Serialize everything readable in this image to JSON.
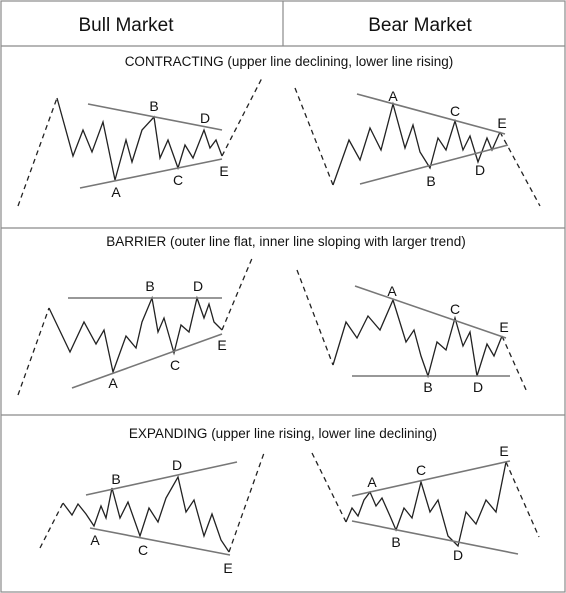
{
  "headers": {
    "bull": "Bull Market",
    "bear": "Bear Market"
  },
  "sections": [
    {
      "id": "contracting",
      "title": "CONTRACTING (upper line declining, lower line rising)"
    },
    {
      "id": "barrier",
      "title": "BARRIER (outer line flat, inner line sloping with larger trend)"
    },
    {
      "id": "expanding",
      "title": "EXPANDING  (upper line rising, lower line declining)"
    }
  ],
  "wave_labels": [
    "A",
    "B",
    "C",
    "D",
    "E"
  ]
}
